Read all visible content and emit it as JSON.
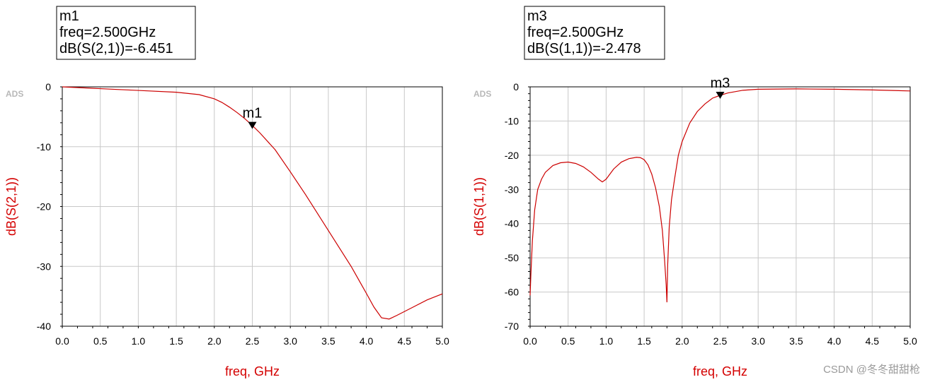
{
  "chart_data": [
    {
      "type": "line",
      "ads_label": "ADS",
      "xlabel": "freq, GHz",
      "ylabel": "dB(S(2,1))",
      "xlim": [
        0,
        5
      ],
      "ylim": [
        -40,
        0
      ],
      "xticks": [
        "0.0",
        "0.5",
        "1.0",
        "1.5",
        "2.0",
        "2.5",
        "3.0",
        "3.5",
        "4.0",
        "4.5",
        "5.0"
      ],
      "yticks": [
        "0",
        "-10",
        "-20",
        "-30",
        "-40"
      ],
      "grid": true,
      "line_color": "#cc0000",
      "series": [
        {
          "x": [
            0,
            0.5,
            1.0,
            1.5,
            1.8,
            2.0,
            2.1,
            2.2,
            2.3,
            2.4,
            2.5,
            2.6,
            2.8,
            3.0,
            3.2,
            3.5,
            3.8,
            4.0,
            4.1,
            4.2,
            4.3,
            4.4,
            4.6,
            4.8,
            5.0
          ],
          "y": [
            0,
            -0.3,
            -0.6,
            -0.9,
            -1.3,
            -2.0,
            -2.6,
            -3.4,
            -4.3,
            -5.3,
            -6.451,
            -7.7,
            -10.5,
            -14.2,
            -18.0,
            -24.0,
            -30.0,
            -34.5,
            -36.8,
            -38.6,
            -38.8,
            -38.2,
            -36.9,
            -35.6,
            -34.6
          ]
        }
      ],
      "marker": {
        "name": "m1",
        "freq": 2.5,
        "value": -6.451,
        "box_lines": [
          "m1",
          "freq=2.500GHz",
          "dB(S(2,1))=-6.451"
        ]
      }
    },
    {
      "type": "line",
      "ads_label": "ADS",
      "xlabel": "freq, GHz",
      "ylabel": "dB(S(1,1))",
      "xlim": [
        0,
        5
      ],
      "ylim": [
        -70,
        0
      ],
      "xticks": [
        "0.0",
        "0.5",
        "1.0",
        "1.5",
        "2.0",
        "2.5",
        "3.0",
        "3.5",
        "4.0",
        "4.5",
        "5.0"
      ],
      "yticks": [
        "0",
        "-10",
        "-20",
        "-30",
        "-40",
        "-50",
        "-60",
        "-70"
      ],
      "grid": true,
      "line_color": "#cc0000",
      "series": [
        {
          "x": [
            0,
            0.01,
            0.03,
            0.06,
            0.1,
            0.15,
            0.2,
            0.3,
            0.4,
            0.5,
            0.6,
            0.7,
            0.8,
            0.9,
            0.95,
            1.0,
            1.05,
            1.1,
            1.2,
            1.3,
            1.4,
            1.45,
            1.5,
            1.55,
            1.6,
            1.65,
            1.7,
            1.74,
            1.77,
            1.79,
            1.8,
            1.81,
            1.83,
            1.86,
            1.9,
            1.95,
            2.0,
            2.1,
            2.2,
            2.3,
            2.4,
            2.5,
            2.6,
            2.8,
            3.0,
            3.5,
            4.0,
            4.5,
            5.0
          ],
          "y": [
            -61,
            -55,
            -45,
            -36,
            -30,
            -27,
            -25,
            -23,
            -22.2,
            -22,
            -22.4,
            -23.4,
            -25,
            -27,
            -27.8,
            -27,
            -25.5,
            -24,
            -22,
            -21,
            -20.6,
            -20.7,
            -21.3,
            -22.8,
            -25.5,
            -29.5,
            -35,
            -42,
            -51,
            -58,
            -63,
            -52,
            -41,
            -33,
            -27,
            -20,
            -16,
            -10.6,
            -7.2,
            -5,
            -3.3,
            -2.478,
            -1.8,
            -1,
            -0.7,
            -0.6,
            -0.7,
            -0.9,
            -1.2
          ]
        }
      ],
      "marker": {
        "name": "m3",
        "freq": 2.5,
        "value": -2.478,
        "box_lines": [
          "m3",
          "freq=2.500GHz",
          "dB(S(1,1))=-2.478"
        ]
      }
    }
  ],
  "watermark": "CSDN @冬冬甜甜枪"
}
